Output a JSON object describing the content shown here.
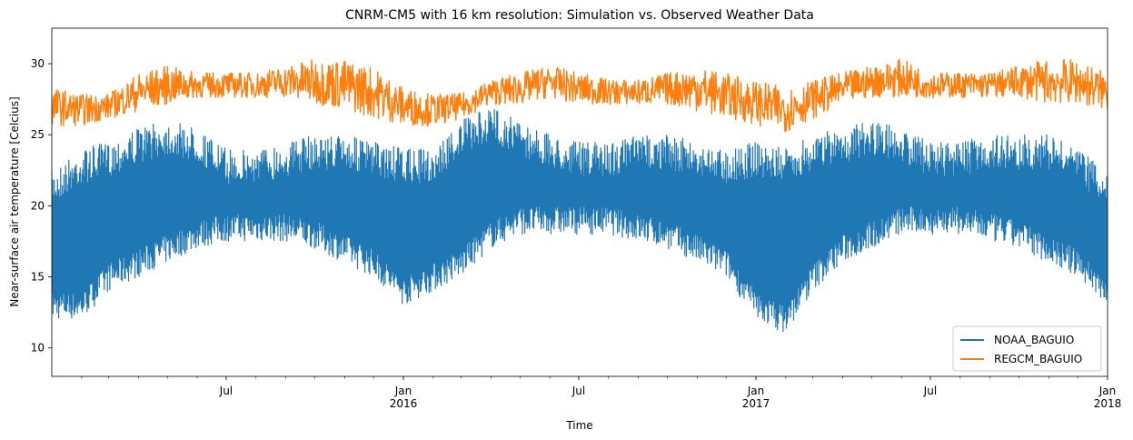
{
  "chart_data": {
    "type": "line",
    "title": "CNRM-CM5 with 16 km resolution: Simulation vs. Observed Weather Data",
    "xlabel": "Time",
    "ylabel": "Near-surface air temperature [Celcius]",
    "xlim": [
      "2015-01-01",
      "2018-01-01"
    ],
    "ylim": [
      8,
      32.5
    ],
    "y_ticks": [
      10,
      15,
      20,
      25,
      30
    ],
    "x_ticks": [
      {
        "date": "2015-07-01",
        "label": "Jul",
        "sublabel": ""
      },
      {
        "date": "2016-01-01",
        "label": "Jan",
        "sublabel": "2016"
      },
      {
        "date": "2016-07-01",
        "label": "Jul",
        "sublabel": ""
      },
      {
        "date": "2017-01-01",
        "label": "Jan",
        "sublabel": "2017"
      },
      {
        "date": "2017-07-01",
        "label": "Jul",
        "sublabel": ""
      },
      {
        "date": "2018-01-01",
        "label": "Jan",
        "sublabel": "2018"
      }
    ],
    "grid": false,
    "legend_position": "bottom-right",
    "series": [
      {
        "name": "NOAA_BAGUIO",
        "color": "#1f77b4",
        "x": [
          "2015-01-01",
          "2015-02-01",
          "2015-03-01",
          "2015-04-01",
          "2015-05-01",
          "2015-06-01",
          "2015-07-01",
          "2015-08-01",
          "2015-09-01",
          "2015-10-01",
          "2015-11-01",
          "2015-12-01",
          "2016-01-01",
          "2016-02-01",
          "2016-03-01",
          "2016-04-01",
          "2016-05-01",
          "2016-06-01",
          "2016-07-01",
          "2016-08-01",
          "2016-09-01",
          "2016-10-01",
          "2016-11-01",
          "2016-12-01",
          "2017-01-01",
          "2017-02-01",
          "2017-03-01",
          "2017-04-01",
          "2017-05-01",
          "2017-06-01",
          "2017-07-01",
          "2017-08-01",
          "2017-09-01",
          "2017-10-01",
          "2017-11-01",
          "2017-12-01",
          "2018-01-01"
        ],
        "upper": [
          22.5,
          24,
          24.5,
          25.5,
          26,
          25.5,
          24,
          24,
          24.5,
          25,
          25,
          24.5,
          24,
          24,
          26,
          27,
          26,
          25,
          24.5,
          24.5,
          25,
          25,
          24.5,
          24,
          24.5,
          24,
          25,
          25.5,
          26,
          25.5,
          24.5,
          24.5,
          25,
          25,
          25,
          24,
          22.5
        ],
        "lower": [
          12,
          12,
          14,
          15,
          16,
          17,
          17.5,
          17.5,
          17.5,
          17,
          16,
          15,
          13,
          14,
          15,
          17,
          18,
          18,
          18,
          18,
          17.5,
          17,
          16,
          15,
          12,
          11,
          14,
          16,
          17,
          18,
          18,
          18,
          17.5,
          17,
          16,
          15,
          13
        ]
      },
      {
        "name": "REGCM_BAGUIO",
        "color": "#ff7f0e",
        "x": [
          "2015-01-01",
          "2015-02-01",
          "2015-03-01",
          "2015-04-01",
          "2015-05-01",
          "2015-06-01",
          "2015-07-01",
          "2015-08-01",
          "2015-09-01",
          "2015-10-01",
          "2015-11-01",
          "2015-12-01",
          "2016-01-01",
          "2016-02-01",
          "2016-03-01",
          "2016-04-01",
          "2016-05-01",
          "2016-06-01",
          "2016-07-01",
          "2016-08-01",
          "2016-09-01",
          "2016-10-01",
          "2016-11-01",
          "2016-12-01",
          "2017-01-01",
          "2017-02-01",
          "2017-03-01",
          "2017-04-01",
          "2017-05-01",
          "2017-06-01",
          "2017-07-01",
          "2017-08-01",
          "2017-09-01",
          "2017-10-01",
          "2017-11-01",
          "2017-12-01",
          "2018-01-01"
        ],
        "upper": [
          28.5,
          28,
          28,
          29.5,
          30,
          29.5,
          29.5,
          29.5,
          30,
          30.5,
          30.5,
          30,
          28.5,
          28,
          28,
          29,
          29.5,
          30,
          29.5,
          29,
          29,
          29.5,
          30,
          29.5,
          29,
          28.5,
          29,
          29.5,
          30,
          30.5,
          29.5,
          29.5,
          29.5,
          30,
          30.5,
          30.5,
          29.5
        ],
        "lower": [
          25.5,
          25.5,
          26,
          26.5,
          27,
          27.5,
          27.5,
          27.5,
          27.5,
          27,
          26.5,
          26,
          25.5,
          25.5,
          26,
          27,
          27,
          27.5,
          27,
          27,
          27,
          27,
          26.5,
          26,
          25.5,
          25,
          26,
          27,
          27.5,
          27.5,
          27.5,
          27.5,
          27.5,
          27.5,
          27,
          27,
          26.5
        ]
      }
    ]
  }
}
